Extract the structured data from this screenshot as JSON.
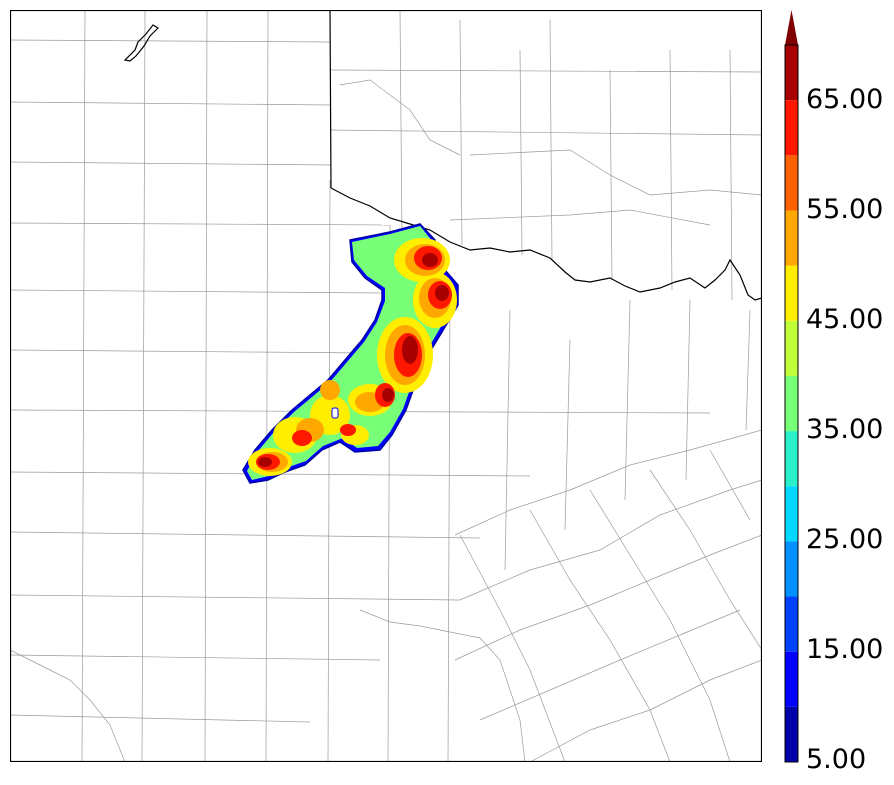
{
  "colorbar": {
    "labels": [
      "65.00",
      "55.00",
      "45.00",
      "35.00",
      "25.00",
      "15.00",
      "5.00"
    ],
    "bins": [
      {
        "from": 5,
        "to": 10,
        "color": "#0000a8"
      },
      {
        "from": 10,
        "to": 15,
        "color": "#0000ff"
      },
      {
        "from": 15,
        "to": 20,
        "color": "#0040ff"
      },
      {
        "from": 20,
        "to": 25,
        "color": "#0090ff"
      },
      {
        "from": 25,
        "to": 30,
        "color": "#00d8ff"
      },
      {
        "from": 30,
        "to": 35,
        "color": "#28f0c8"
      },
      {
        "from": 35,
        "to": 40,
        "color": "#78ff78"
      },
      {
        "from": 40,
        "to": 45,
        "color": "#c0ff38"
      },
      {
        "from": 45,
        "to": 50,
        "color": "#ffee00"
      },
      {
        "from": 50,
        "to": 55,
        "color": "#ffa800"
      },
      {
        "from": 55,
        "to": 60,
        "color": "#ff6000"
      },
      {
        "from": 60,
        "to": 65,
        "color": "#ff1800"
      },
      {
        "from": 65,
        "to": 70,
        "color": "#a80000"
      }
    ],
    "extend_color": "#800000"
  },
  "map": {
    "background": "#ffffff",
    "county_line_color": "#9a9a9a",
    "state_line_color": "#000000"
  }
}
